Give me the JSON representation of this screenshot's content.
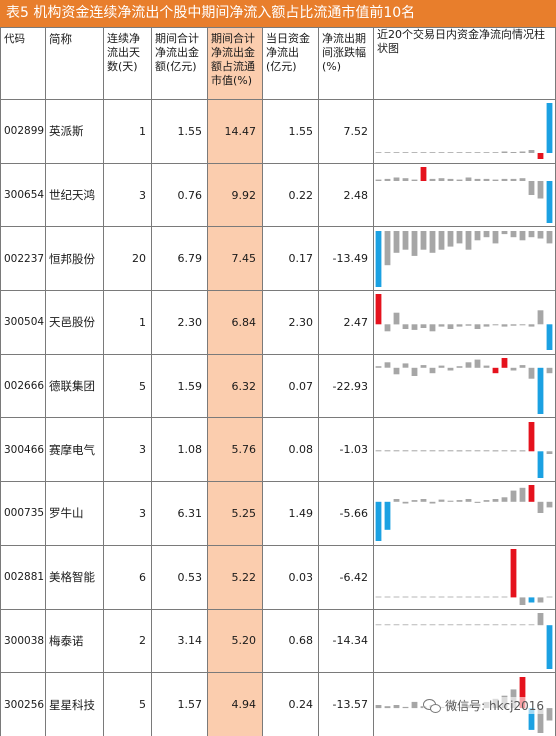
{
  "title": "表5  机构资金连续净流出个股中期间净流入额占比流通市值前10名",
  "headers": {
    "code": "代码",
    "name": "简称",
    "days": "连续净流出天数(天)",
    "amount": "期间合计净流出金额(亿元)",
    "ratio": "期间合计净流出金额占流通市值(%)",
    "day_amount": "当日资金净流出(亿元)",
    "change": "净流出期间涨跌幅(%)",
    "spark": "近20个交易日内资金净流向情况柱状图"
  },
  "colors": {
    "title_bg": "#e87e2c",
    "ratio_bg": "#fbcdae",
    "bar_gray": "#a6a6a6",
    "bar_red": "#e5121d",
    "bar_blue": "#1ba1e2"
  },
  "rows": [
    {
      "code": "002899",
      "name": "英派斯",
      "days": "1",
      "amount": "1.55",
      "ratio": "14.47",
      "day_amount": "1.55",
      "change": "7.52",
      "bars": [
        0,
        0,
        0,
        0,
        0,
        0,
        0,
        0,
        0,
        0,
        0,
        0,
        0,
        0,
        0.03,
        0.02,
        0.03,
        0.06,
        -0.12,
        1.0
      ],
      "colors": [
        "g",
        "g",
        "g",
        "g",
        "g",
        "g",
        "g",
        "g",
        "g",
        "g",
        "g",
        "g",
        "g",
        "g",
        "g",
        "g",
        "g",
        "g",
        "r",
        "b"
      ]
    },
    {
      "code": "300654",
      "name": "世纪天鸿",
      "days": "3",
      "amount": "0.76",
      "ratio": "9.92",
      "day_amount": "0.22",
      "change": "2.48",
      "bars": [
        0.02,
        0.03,
        0.05,
        0.04,
        0.02,
        0.2,
        0.03,
        0.04,
        0.03,
        0.02,
        0.05,
        0.03,
        0.03,
        0.02,
        0.03,
        0.03,
        0.04,
        -0.2,
        -0.25,
        -0.6
      ],
      "colors": [
        "g",
        "g",
        "g",
        "g",
        "g",
        "r",
        "g",
        "g",
        "g",
        "g",
        "g",
        "g",
        "g",
        "g",
        "g",
        "g",
        "g",
        "g",
        "g",
        "b"
      ]
    },
    {
      "code": "002237",
      "name": "恒邦股份",
      "days": "20",
      "amount": "6.79",
      "ratio": "7.45",
      "day_amount": "0.17",
      "change": "-13.49",
      "bars": [
        -0.9,
        -0.55,
        -0.35,
        -0.3,
        -0.4,
        -0.3,
        -0.35,
        -0.3,
        -0.25,
        -0.2,
        -0.3,
        -0.15,
        -0.1,
        -0.2,
        -0.05,
        -0.1,
        -0.15,
        -0.1,
        -0.12,
        -0.2
      ],
      "colors": [
        "b",
        "g",
        "g",
        "g",
        "g",
        "g",
        "g",
        "g",
        "g",
        "g",
        "g",
        "g",
        "g",
        "g",
        "g",
        "g",
        "g",
        "g",
        "g",
        "g"
      ]
    },
    {
      "code": "300504",
      "name": "天邑股份",
      "days": "1",
      "amount": "2.30",
      "ratio": "6.84",
      "day_amount": "2.30",
      "change": "2.47",
      "bars": [
        0.65,
        -0.15,
        0.25,
        -0.1,
        -0.12,
        -0.08,
        -0.15,
        -0.05,
        -0.1,
        -0.05,
        -0.03,
        -0.1,
        -0.05,
        -0.02,
        -0.05,
        -0.03,
        -0.02,
        -0.05,
        0.3,
        -0.55
      ],
      "colors": [
        "r",
        "g",
        "g",
        "g",
        "g",
        "g",
        "g",
        "g",
        "g",
        "g",
        "g",
        "g",
        "g",
        "g",
        "g",
        "g",
        "g",
        "g",
        "g",
        "b"
      ]
    },
    {
      "code": "002666",
      "name": "德联集团",
      "days": "5",
      "amount": "1.59",
      "ratio": "6.32",
      "day_amount": "0.07",
      "change": "-22.93",
      "bars": [
        0.03,
        0.1,
        -0.12,
        0.08,
        -0.15,
        0.05,
        -0.1,
        0.04,
        -0.05,
        0.03,
        0.1,
        0.15,
        0.04,
        -0.1,
        0.18,
        -0.05,
        0.05,
        -0.2,
        -0.85,
        -0.1
      ],
      "colors": [
        "g",
        "g",
        "g",
        "g",
        "g",
        "g",
        "g",
        "g",
        "g",
        "g",
        "g",
        "g",
        "g",
        "r",
        "r",
        "g",
        "g",
        "g",
        "b",
        "g"
      ]
    },
    {
      "code": "300466",
      "name": "赛摩电气",
      "days": "3",
      "amount": "1.08",
      "ratio": "5.76",
      "day_amount": "0.08",
      "change": "-1.03",
      "bars": [
        0.01,
        0.01,
        0.01,
        0.01,
        0.01,
        0.01,
        0.01,
        0.01,
        0.01,
        0.02,
        0.01,
        0.01,
        0.01,
        0.02,
        0.01,
        0.02,
        0.02,
        0.55,
        -0.5,
        -0.05
      ],
      "colors": [
        "g",
        "g",
        "g",
        "g",
        "g",
        "g",
        "g",
        "g",
        "g",
        "g",
        "g",
        "g",
        "g",
        "g",
        "g",
        "g",
        "g",
        "r",
        "b",
        "g"
      ]
    },
    {
      "code": "000735",
      "name": "罗牛山",
      "days": "3",
      "amount": "6.31",
      "ratio": "5.25",
      "day_amount": "1.49",
      "change": "-5.66",
      "bars": [
        -0.7,
        -0.5,
        0.05,
        -0.03,
        0.03,
        0.05,
        -0.03,
        0.04,
        0.02,
        0.03,
        0.05,
        -0.02,
        0.03,
        0.05,
        0.08,
        0.2,
        0.25,
        0.3,
        -0.2,
        -0.1
      ],
      "colors": [
        "b",
        "b",
        "g",
        "g",
        "g",
        "g",
        "g",
        "g",
        "g",
        "g",
        "g",
        "g",
        "g",
        "g",
        "g",
        "g",
        "g",
        "r",
        "g",
        "g"
      ]
    },
    {
      "code": "002881",
      "name": "美格智能",
      "days": "6",
      "amount": "0.53",
      "ratio": "5.22",
      "day_amount": "0.03",
      "change": "-6.42",
      "bars": [
        0,
        0,
        0,
        0,
        0,
        0,
        0,
        0,
        0,
        0,
        0,
        0,
        0,
        0,
        0,
        0.95,
        -0.15,
        -0.1,
        -0.1,
        0
      ],
      "colors": [
        "g",
        "g",
        "g",
        "g",
        "g",
        "g",
        "g",
        "g",
        "g",
        "g",
        "g",
        "g",
        "g",
        "g",
        "g",
        "r",
        "g",
        "b",
        "g",
        "g"
      ]
    },
    {
      "code": "300038",
      "name": "梅泰诺",
      "days": "2",
      "amount": "3.14",
      "ratio": "5.20",
      "day_amount": "0.68",
      "change": "-14.34",
      "bars": [
        0,
        0,
        0,
        0,
        0,
        0,
        0,
        0,
        0,
        0,
        0,
        0,
        0,
        0,
        0,
        0,
        0,
        0,
        0.25,
        -0.9
      ],
      "colors": [
        "g",
        "g",
        "g",
        "g",
        "g",
        "g",
        "g",
        "g",
        "g",
        "g",
        "g",
        "g",
        "g",
        "g",
        "g",
        "g",
        "g",
        "g",
        "g",
        "b"
      ]
    },
    {
      "code": "300256",
      "name": "星星科技",
      "days": "5",
      "amount": "1.57",
      "ratio": "4.94",
      "day_amount": "0.24",
      "change": "-13.57",
      "bars": [
        0.05,
        0.03,
        0.05,
        0.02,
        0.1,
        0.03,
        0.05,
        0.02,
        0.05,
        0.02,
        0.05,
        0.03,
        0.1,
        0.15,
        0.2,
        0.3,
        0.5,
        -0.35,
        -0.4,
        -0.2
      ],
      "colors": [
        "g",
        "g",
        "g",
        "g",
        "g",
        "g",
        "g",
        "g",
        "g",
        "g",
        "g",
        "g",
        "g",
        "g",
        "g",
        "g",
        "r",
        "b",
        "g",
        "g"
      ]
    }
  ],
  "watermark": "微信号: hkcj2016"
}
